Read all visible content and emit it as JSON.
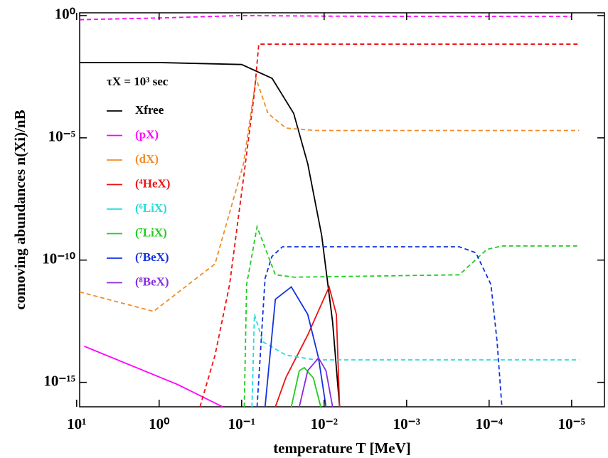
{
  "chart_data": {
    "type": "line",
    "log_x": true,
    "log_y": true,
    "x_reversed": true,
    "xlabel": "temperature T [MeV]",
    "ylabel": "comoving abundances n(Xi)/nB",
    "annotation": "τX = 10³ sec",
    "legend": "upper-left",
    "xlim": [
      9.2,
      4e-06
    ],
    "ylim": [
      1.3,
      1e-16
    ],
    "xticks": [
      {
        "value": 10,
        "label": "10¹"
      },
      {
        "value": 1,
        "label": "10⁰"
      },
      {
        "value": 0.1,
        "label": "10⁻¹"
      },
      {
        "value": 0.01,
        "label": "10⁻²"
      },
      {
        "value": 0.001,
        "label": "10⁻³"
      },
      {
        "value": 0.0001,
        "label": "10⁻⁴"
      },
      {
        "value": 1e-05,
        "label": "10⁻⁵"
      }
    ],
    "yticks": [
      {
        "value": 1,
        "label": "10⁰"
      },
      {
        "value": 1e-05,
        "label": "10⁻⁵"
      },
      {
        "value": 1e-10,
        "label": "10⁻¹⁰"
      },
      {
        "value": 1e-15,
        "label": "10⁻¹⁵"
      }
    ],
    "series": [
      {
        "name": "Xfree",
        "color": "#000000",
        "x": [
          9.2,
          1,
          0.1,
          0.0427,
          0.0234,
          0.0158,
          0.0107,
          0.0079,
          0.0065
        ],
        "values": [
          0.012,
          0.012,
          0.01,
          0.0027,
          0.0001,
          8.7e-07,
          1e-09,
          3e-13,
          1e-16
        ]
      },
      {
        "name": "(pX)",
        "color": "#ff00ff",
        "x": [
          8.1,
          0.59,
          0.17
        ],
        "values": [
          3e-14,
          8e-16,
          1e-16
        ],
        "dashed_x": [
          9.2,
          1,
          0.1,
          0.01,
          0.001,
          1e-05
        ],
        "dashed_values": [
          0.68,
          0.8,
          1.0,
          0.95,
          0.93,
          0.93
        ]
      },
      {
        "name": "(dX)",
        "color": "#f28c28",
        "dashed_x": [
          9.2,
          1.17,
          0.21,
          0.095,
          0.067,
          0.048,
          0.029,
          0.0129,
          8.1e-06
        ],
        "dashed_values": [
          5e-12,
          8e-13,
          7e-11,
          8.7e-07,
          0.0027,
          0.0001,
          2.5e-05,
          2e-05,
          2e-05
        ]
      },
      {
        "name": "(⁴HeX)",
        "color": "#ee1111",
        "x": [
          0.039,
          0.029,
          0.0158,
          0.0087,
          0.0071,
          0.0065
        ],
        "values": [
          1e-16,
          1.6e-15,
          8.7e-14,
          8e-12,
          6e-13,
          1e-16
        ],
        "dashed_x": [
          0.32,
          0.21,
          0.14,
          0.095,
          0.07,
          0.062,
          8.1e-06
        ],
        "dashed_values": [
          1e-16,
          1.3e-14,
          1e-11,
          2.2e-07,
          0.0007,
          0.068,
          0.068
        ]
      },
      {
        "name": "(⁶LiX)",
        "color": "#22dddd",
        "dashed_x": [
          0.075,
          0.07,
          0.055,
          0.029,
          0.0129,
          8.1e-06
        ],
        "dashed_values": [
          1e-16,
          6e-13,
          4.5e-14,
          1.3e-14,
          8.3e-15,
          8.3e-15
        ]
      },
      {
        "name": "(⁷LiX)",
        "color": "#22cc22",
        "x": [
          0.025,
          0.02,
          0.0174,
          0.0135,
          0.011
        ],
        "values": [
          1e-16,
          3e-15,
          4e-15,
          1.5e-15,
          1e-16
        ],
        "dashed_x": [
          0.093,
          0.087,
          0.065,
          0.039,
          0.023,
          0.00023,
          0.000107,
          7e-05,
          8.1e-06
        ],
        "dashed_values": [
          1e-16,
          1e-11,
          2.3e-09,
          2.5e-11,
          2e-11,
          2.5e-11,
          2.7e-10,
          3.8e-10,
          3.8e-10
        ]
      },
      {
        "name": "(⁷BeX)",
        "color": "#1133dd",
        "x": [
          0.052,
          0.039,
          0.025,
          0.0158,
          0.0117,
          0.0095
        ],
        "values": [
          1e-16,
          2.5e-12,
          8e-12,
          6e-13,
          1e-14,
          1e-16
        ],
        "dashed_x": [
          0.065,
          0.052,
          0.043,
          0.032,
          0.00023,
          0.000145,
          9.5e-05,
          8e-05,
          7e-05
        ],
        "dashed_values": [
          1e-16,
          1.8e-11,
          1.4e-10,
          3.5e-10,
          3.5e-10,
          2e-10,
          1e-11,
          4.5e-14,
          1e-16
        ]
      },
      {
        "name": "(⁸BeX)",
        "color": "#8a2be2",
        "x": [
          0.02,
          0.0158,
          0.0117,
          0.0095,
          0.0079
        ],
        "values": [
          1e-16,
          3e-15,
          1e-14,
          3e-15,
          1e-16
        ]
      }
    ]
  }
}
